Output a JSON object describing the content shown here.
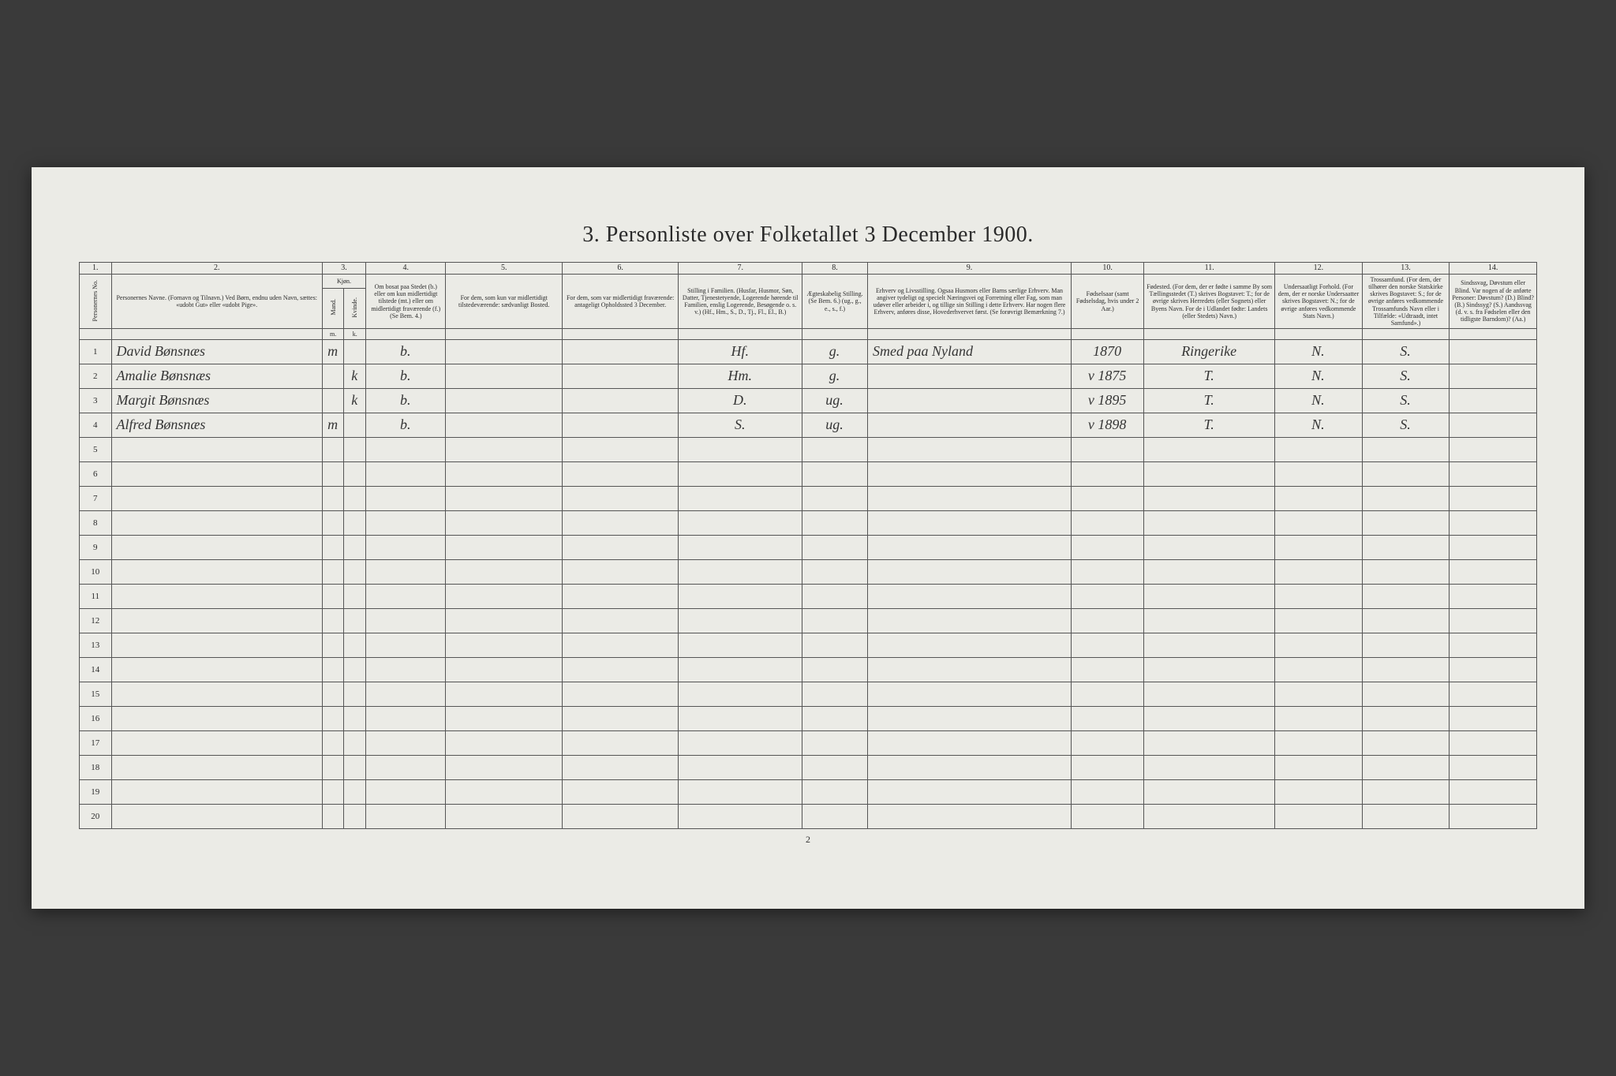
{
  "title": "3. Personliste over Folketallet 3 December 1900.",
  "footer_page_number": "2",
  "columns": {
    "numbers": [
      "1.",
      "2.",
      "3.",
      "4.",
      "5.",
      "6.",
      "7.",
      "8.",
      "9.",
      "10.",
      "11.",
      "12.",
      "13.",
      "14."
    ],
    "headers": {
      "c1": "Personernes No.",
      "c2": "Personernes Navne.\n(Fornavn og Tilnavn.)\nVed Børn, endnu uden Navn, sættes: «udobt Gut» eller «udobt Pige».",
      "c3": "Kjøn.",
      "c3m": "Mand.",
      "c3k": "Kvinde.",
      "c4": "Om bosat paa Stedet (b.) eller om kun midlertidigt tilstede (mt.) eller om midlertidigt fraværende (f.) (Se Bem. 4.)",
      "c5": "For dem, som kun var midlertidigt tilstedeværende:\nsædvanligt Bosted.",
      "c6": "For dem, som var midlertidigt fraværende:\nantageligt Opholdssted 3 December.",
      "c7": "Stilling i Familien.\n(Husfar, Husmor, Søn, Datter, Tjenestetyende, Logerende hørende til Familien, enslig Logerende, Besøgende o. s. v.)\n(Hf., Hm., S., D., Tj., Fl., El., B.)",
      "c8": "Ægteskabelig Stilling.\n(Se Bem. 6.)\n(ug., g., e., s., f.)",
      "c9": "Erhverv og Livsstilling.\nOgsaa Husmors eller Barns særlige Erhverv. Man angiver tydeligt og specielt Næringsvei og Forretning eller Fag, som man udøver eller arbeider i, og tillige sin Stilling i dette Erhverv. Har nogen flere Erhverv, anføres disse, Hovederhvervet først.\n(Se forøvrigt Bemærkning 7.)",
      "c10": "Fødselsaar\n(samt Fødselsdag, hvis under 2 Aar.)",
      "c11": "Fødested.\n(For dem, der er fødte i samme By som Tællingsstedet (T.) skrives Bogstavet: T.; for de øvrige skrives Herredets (eller Sognets) eller Byens Navn. For de i Udlandet fødte: Landets (eller Stedets) Navn.)",
      "c12": "Undersaatligt Forhold.\n(For dem, der er norske Undersaatter skrives Bogstavet: N.; for de øvrige anføres vedkommende Stats Navn.)",
      "c13": "Trossamfund.\n(For dem, der tilhører den norske Statskirke skrives Bogstavet: S.; for de øvrige anføres vedkommende Trossamfunds Navn eller i Tilfælde: «Udtraadt, intet Samfund».)",
      "c14": "Sindssvag, Døvstum eller Blind.\nVar nogen af de anførte Personer:\nDøvstum? (D.)\nBlind? (B.)\nSindssyg? (S.)\nAandssvag (d. v. s. fra Fødselen eller den tidligste Barndom)? (Aa.)"
    }
  },
  "rows": [
    {
      "n": "1",
      "name": "David Bønsnæs",
      "m": "m",
      "k": "",
      "b": "b.",
      "c5": "",
      "c6": "",
      "c7": "Hf.",
      "c8": "g.",
      "c9": "Smed paa Nyland",
      "c10": "1870",
      "c11": "Ringerike",
      "c12": "N.",
      "c13": "S.",
      "c14": ""
    },
    {
      "n": "2",
      "name": "Amalie Bønsnæs",
      "m": "",
      "k": "k",
      "b": "b.",
      "c5": "",
      "c6": "",
      "c7": "Hm.",
      "c8": "g.",
      "c9": "",
      "c10": "v 1875",
      "c11": "T.",
      "c12": "N.",
      "c13": "S.",
      "c14": ""
    },
    {
      "n": "3",
      "name": "Margit Bønsnæs",
      "m": "",
      "k": "k",
      "b": "b.",
      "c5": "",
      "c6": "",
      "c7": "D.",
      "c8": "ug.",
      "c9": "",
      "c10": "v 1895",
      "c11": "T.",
      "c12": "N.",
      "c13": "S.",
      "c14": ""
    },
    {
      "n": "4",
      "name": "Alfred Bønsnæs",
      "m": "m",
      "k": "",
      "b": "b.",
      "c5": "",
      "c6": "",
      "c7": "S.",
      "c8": "ug.",
      "c9": "",
      "c10": "v 1898",
      "c11": "T.",
      "c12": "N.",
      "c13": "S.",
      "c14": ""
    },
    {
      "n": "5"
    },
    {
      "n": "6"
    },
    {
      "n": "7"
    },
    {
      "n": "8"
    },
    {
      "n": "9"
    },
    {
      "n": "10"
    },
    {
      "n": "11"
    },
    {
      "n": "12"
    },
    {
      "n": "13"
    },
    {
      "n": "14"
    },
    {
      "n": "15"
    },
    {
      "n": "16"
    },
    {
      "n": "17"
    },
    {
      "n": "18"
    },
    {
      "n": "19"
    },
    {
      "n": "20"
    }
  ],
  "col_widths_pct": [
    2.2,
    14.5,
    1.5,
    1.5,
    5.5,
    8,
    8,
    8.5,
    4.5,
    14,
    5,
    9,
    6,
    6,
    6
  ],
  "colors": {
    "page_bg": "#ebebe6",
    "outer_bg": "#3a3a3a",
    "border": "#555555",
    "text": "#2a2a2a",
    "handwriting": "#353535"
  }
}
